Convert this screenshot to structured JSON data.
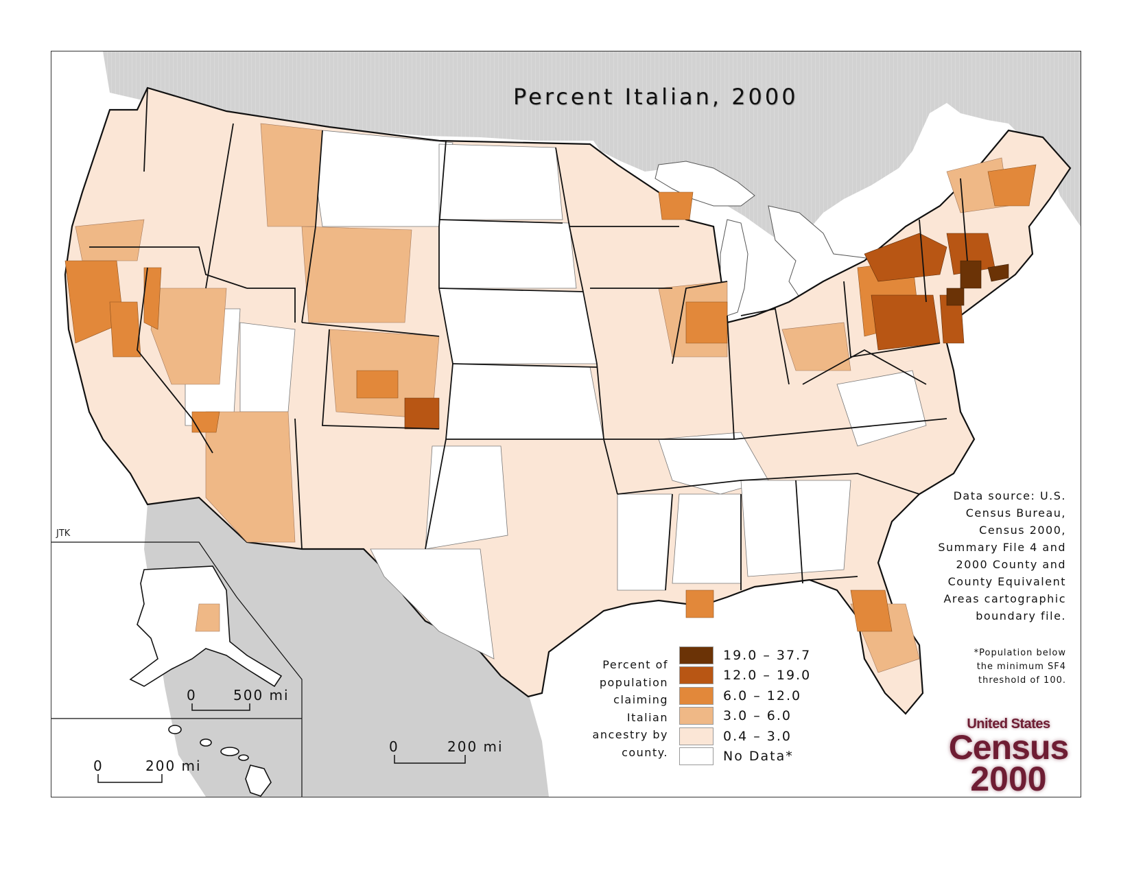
{
  "title": "Percent Italian, 2000",
  "author_mark": "JTK",
  "colors": {
    "class_19_37": "#6b3306",
    "class_12_19": "#b85614",
    "class_6_12": "#e2883a",
    "class_3_6": "#efb886",
    "class_04_3": "#fbe6d6",
    "no_data": "#ffffff",
    "canada_gray": "#cfcfcf",
    "water": "#ffffff"
  },
  "legend": {
    "caption": [
      "Percent of",
      "population",
      "claiming",
      "Italian",
      "ancestry by",
      "county."
    ],
    "classes": [
      {
        "label": "19.0 – 37.7",
        "color": "#6b3306"
      },
      {
        "label": "12.0 – 19.0",
        "color": "#b85614"
      },
      {
        "label": "6.0 – 12.0",
        "color": "#e2883a"
      },
      {
        "label": "3.0 – 6.0",
        "color": "#efb886"
      },
      {
        "label": "0.4 – 3.0",
        "color": "#fbe6d6"
      },
      {
        "label": "No Data*",
        "color": "#ffffff"
      }
    ]
  },
  "source": [
    "Data source:  U.S.",
    "Census Bureau,",
    "Census 2000,",
    "Summary File 4 and",
    "2000 County and",
    "County Equivalent",
    "Areas cartographic",
    "boundary file."
  ],
  "footnote": [
    "*Population below",
    "the minimum SF4",
    "threshold of 100."
  ],
  "scales": {
    "main": {
      "zero": "0",
      "dist": "200 mi"
    },
    "alaska": {
      "zero": "0",
      "dist": "500 mi"
    },
    "hawaii": {
      "zero": "0",
      "dist": "200 mi"
    }
  },
  "logo": {
    "line1": "United States",
    "line2": "Census",
    "line3": "2000"
  }
}
